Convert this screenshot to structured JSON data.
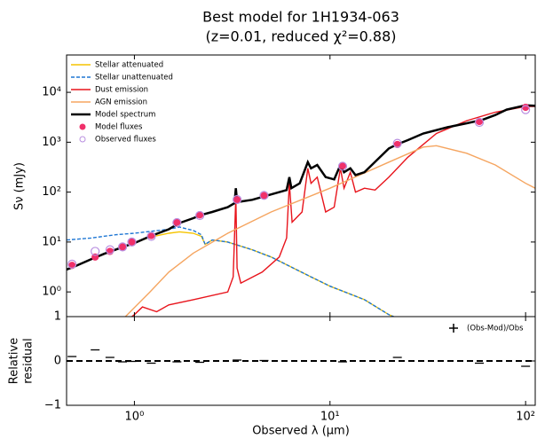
{
  "chart_data": [
    {
      "type": "line",
      "title": "Best model for 1H1934-063",
      "subtitle": "(z=0.01, reduced χ²=0.88)",
      "ylabel": "Sν (mJy)",
      "log_x": true,
      "log_y": true,
      "xlim": [
        0.45,
        112
      ],
      "ylim": [
        0.32,
        56000
      ],
      "yticks": [
        {
          "value": 1,
          "label": "10⁰"
        },
        {
          "value": 10,
          "label": "10¹"
        },
        {
          "value": 100,
          "label": "10²"
        },
        {
          "value": 1000,
          "label": "10³"
        },
        {
          "value": 10000,
          "label": "10⁴"
        }
      ],
      "legend": "upper left",
      "series": [
        {
          "name": "Stellar attenuated",
          "color": "#f5c400",
          "style": "solid",
          "x": [
            0.45,
            0.6,
            0.8,
            1.0,
            1.2,
            1.5,
            1.7,
            2.0,
            2.2,
            2.3,
            2.5,
            3,
            4,
            5,
            6,
            8,
            10,
            15,
            20,
            22
          ],
          "values": [
            2.8,
            4.5,
            7,
            9.5,
            12.5,
            15,
            16,
            15,
            13,
            9,
            11,
            10,
            7,
            5,
            3.5,
            2,
            1.3,
            0.7,
            0.35,
            0.3
          ]
        },
        {
          "name": "Stellar unattenuated",
          "color": "#1f77d4",
          "style": "dashed",
          "x": [
            0.45,
            0.6,
            0.8,
            1.0,
            1.5,
            1.7,
            2.0,
            2.2,
            2.3,
            2.5,
            3,
            4,
            5,
            6,
            8,
            10,
            15,
            20,
            22
          ],
          "values": [
            11,
            12,
            14,
            15,
            18,
            20,
            17,
            14,
            9,
            11,
            10,
            7,
            5,
            3.5,
            2,
            1.3,
            0.7,
            0.35,
            0.3
          ]
        },
        {
          "name": "Dust emission",
          "color": "#e8141c",
          "style": "solid",
          "x": [
            0.97,
            1.0,
            1.1,
            1.3,
            1.5,
            2.0,
            3.0,
            3.2,
            3.3,
            3.35,
            3.5,
            4.5,
            5.5,
            6.0,
            6.2,
            6.4,
            7.2,
            7.7,
            8.0,
            8.6,
            9.5,
            10.5,
            11.3,
            11.8,
            12.7,
            13.5,
            15,
            17,
            20,
            25,
            35,
            50,
            70,
            100,
            112
          ],
          "values": [
            0.32,
            0.35,
            0.5,
            0.4,
            0.55,
            0.7,
            1.0,
            2,
            80,
            3,
            1.5,
            2.5,
            5,
            12,
            150,
            25,
            40,
            300,
            150,
            200,
            40,
            50,
            300,
            120,
            250,
            100,
            120,
            110,
            200,
            500,
            1500,
            2700,
            4000,
            5200,
            5200
          ]
        },
        {
          "name": "AGN emission",
          "color": "#f5a560",
          "style": "solid",
          "x": [
            0.9,
            1.2,
            1.5,
            2,
            3,
            5,
            10,
            20,
            30,
            35,
            50,
            70,
            100,
            112
          ],
          "values": [
            0.32,
            1,
            2.5,
            6,
            15,
            40,
            120,
            400,
            800,
            850,
            600,
            350,
            150,
            120
          ]
        },
        {
          "name": "Model spectrum",
          "color": "#000000",
          "style": "thick",
          "x": [
            0.45,
            0.5,
            0.6,
            0.7,
            0.8,
            0.9,
            1.0,
            1.2,
            1.5,
            1.7,
            2.0,
            2.2,
            2.5,
            3.0,
            3.25,
            3.3,
            3.35,
            3.5,
            4.0,
            5.0,
            6.0,
            6.2,
            6.35,
            7.0,
            7.7,
            8.0,
            8.6,
            9.5,
            10.5,
            11.3,
            11.8,
            12.7,
            13.5,
            15,
            20,
            22,
            25,
            30,
            40,
            50,
            60,
            70,
            80,
            100,
            112
          ],
          "values": [
            2.8,
            3.3,
            4.5,
            5.8,
            7,
            8.3,
            9.5,
            13,
            18,
            24,
            30,
            35,
            40,
            50,
            60,
            120,
            65,
            65,
            70,
            90,
            110,
            200,
            120,
            150,
            400,
            300,
            350,
            200,
            180,
            350,
            250,
            300,
            220,
            250,
            750,
            900,
            1100,
            1500,
            2000,
            2400,
            2800,
            3500,
            4500,
            5500,
            5400
          ]
        },
        {
          "name": "Model fluxes",
          "color": "#f0306a",
          "style": "dots",
          "x": [
            0.48,
            0.63,
            0.75,
            0.87,
            0.97,
            1.22,
            1.65,
            2.16,
            3.35,
            4.6,
            11.6,
            22.1,
            58,
            100
          ],
          "values": [
            3.4,
            5,
            6.5,
            8,
            10,
            13.5,
            25,
            35,
            70,
            85,
            340,
            900,
            2600,
            5000
          ]
        },
        {
          "name": "Observed fluxes",
          "color": "#b98fe0",
          "style": "rings",
          "x": [
            0.48,
            0.63,
            0.75,
            0.87,
            0.97,
            1.22,
            1.65,
            2.16,
            3.35,
            4.6,
            11.6,
            22.1,
            58,
            100
          ],
          "values": [
            3.6,
            6.5,
            7,
            8,
            10,
            13,
            24.5,
            34,
            71,
            86,
            330,
            950,
            2500,
            4500
          ]
        }
      ]
    },
    {
      "type": "scatter",
      "xlabel": "Observed λ (μm)",
      "ylabel": [
        "Relative",
        "residual"
      ],
      "log_x": true,
      "xlim": [
        0.45,
        112
      ],
      "ylim": [
        -1,
        1
      ],
      "xticks": [
        {
          "value": 1,
          "label": "10⁰"
        },
        {
          "value": 10,
          "label": "10¹"
        },
        {
          "value": 100,
          "label": "10²"
        }
      ],
      "yticks": [
        {
          "value": -1,
          "label": "−1"
        },
        0,
        1
      ],
      "hline": 0,
      "legend": "upper right",
      "series": [
        {
          "name": "(Obs-Mod)/Obs",
          "color": "#000000",
          "x": [
            0.48,
            0.63,
            0.75,
            0.87,
            0.97,
            1.22,
            1.65,
            2.16,
            3.35,
            4.6,
            11.6,
            22.1,
            58,
            100
          ],
          "values": [
            0.1,
            0.25,
            0.08,
            -0.02,
            -0.01,
            -0.05,
            -0.02,
            -0.03,
            0.02,
            0.01,
            -0.02,
            0.08,
            -0.05,
            -0.12
          ]
        }
      ]
    }
  ]
}
